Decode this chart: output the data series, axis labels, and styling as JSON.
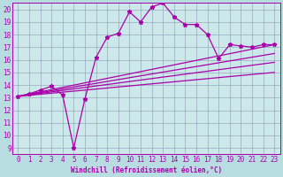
{
  "bg_color": "#b8dde0",
  "plot_bg_color": "#cce8ea",
  "line_color": "#aa00aa",
  "grid_color": "#99aabb",
  "xlabel": "Windchill (Refroidissement éolien,°C)",
  "xlim": [
    -0.5,
    23.5
  ],
  "ylim": [
    8.5,
    20.5
  ],
  "yticks": [
    9,
    10,
    11,
    12,
    13,
    14,
    15,
    16,
    17,
    18,
    19,
    20
  ],
  "xticks": [
    0,
    1,
    2,
    3,
    4,
    5,
    6,
    7,
    8,
    9,
    10,
    11,
    12,
    13,
    14,
    15,
    16,
    17,
    18,
    19,
    20,
    21,
    22,
    23
  ],
  "line1_x": [
    0,
    1,
    2,
    3,
    4,
    5,
    6,
    7,
    8,
    9,
    10,
    11,
    12,
    13,
    14,
    15,
    16,
    17,
    18,
    19,
    20,
    21,
    22,
    23
  ],
  "line1_y": [
    13.1,
    13.3,
    13.6,
    13.9,
    13.2,
    9.0,
    12.9,
    16.2,
    17.8,
    18.1,
    19.8,
    19.0,
    20.2,
    20.5,
    19.4,
    18.8,
    18.8,
    18.0,
    16.1,
    17.2,
    17.1,
    17.0,
    17.2,
    17.2
  ],
  "line2_x": [
    0,
    23
  ],
  "line2_y": [
    13.1,
    17.2
  ],
  "line3_x": [
    0,
    23
  ],
  "line3_y": [
    13.1,
    16.5
  ],
  "line4_x": [
    0,
    23
  ],
  "line4_y": [
    13.1,
    15.8
  ],
  "line5_x": [
    0,
    23
  ],
  "line5_y": [
    13.1,
    15.0
  ],
  "tick_fontsize": 5.5,
  "label_fontsize": 5.5
}
